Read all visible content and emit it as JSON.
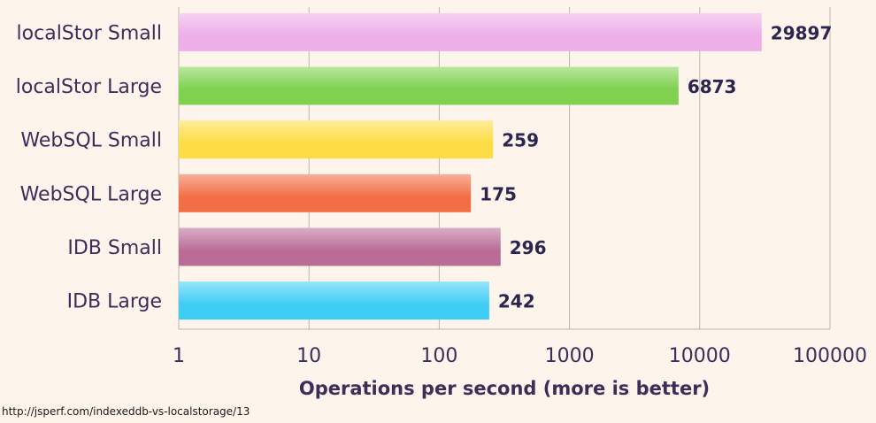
{
  "chart_data": {
    "type": "bar",
    "orientation": "horizontal",
    "categories": [
      "localStor Small",
      "localStor Large",
      "WebSQL Small",
      "WebSQL Large",
      "IDB Small",
      "IDB Large"
    ],
    "values": [
      29897,
      6873,
      259,
      175,
      296,
      242
    ],
    "value_labels": [
      "29897",
      "6873",
      "259",
      "175",
      "296",
      "242"
    ],
    "colors": [
      "#eeaee8",
      "#7fd14f",
      "#fddc45",
      "#f26e46",
      "#b96c96",
      "#3fcdf5"
    ],
    "xscale": "log",
    "xlim": [
      1,
      100000
    ],
    "xticks": [
      1,
      10,
      100,
      1000,
      10000,
      100000
    ],
    "xtick_labels": [
      "1",
      "10",
      "100",
      "1000",
      "10000",
      "100000"
    ],
    "xlabel": "Operations per second (more is better)",
    "grid": true
  },
  "source": "http://jsperf.com/indexeddb-vs-localstorage/13"
}
